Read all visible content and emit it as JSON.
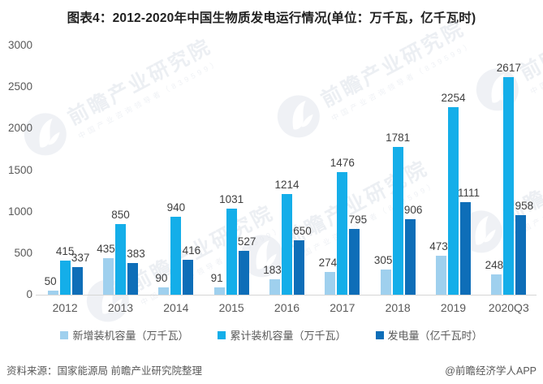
{
  "title": "图表4：2012-2020年中国生物质发电运行情况(单位：万千瓦，亿千瓦时)",
  "chart_data": {
    "type": "bar",
    "categories": [
      "2012",
      "2013",
      "2014",
      "2015",
      "2016",
      "2017",
      "2018",
      "2019",
      "2020Q3"
    ],
    "series": [
      {
        "name": "新增装机容量（万千瓦）",
        "color": "#9fd0ee",
        "values": [
          50,
          435,
          90,
          91,
          183,
          274,
          305,
          473,
          248
        ]
      },
      {
        "name": "累计装机容量（万千瓦）",
        "color": "#14aee9",
        "values": [
          415,
          850,
          940,
          1031,
          1214,
          1476,
          1781,
          2254,
          2617
        ]
      },
      {
        "name": "发电量（亿千瓦时）",
        "color": "#0e6eb8",
        "values": [
          337,
          383,
          416,
          527,
          650,
          795,
          906,
          1111,
          958
        ]
      }
    ],
    "ylim": [
      0,
      3000
    ],
    "yticks": [
      0,
      500,
      1000,
      1500,
      2000,
      2500,
      3000
    ],
    "grid": false,
    "legend_position": "bottom",
    "data_labels": true
  },
  "watermark": {
    "main": "前瞻产业研究院",
    "sub": "中国产业咨询领导者（839599）"
  },
  "footer": {
    "source": "资料来源：国家能源局 前瞻产业研究院整理",
    "credit": "@前瞻经济学人APP"
  }
}
